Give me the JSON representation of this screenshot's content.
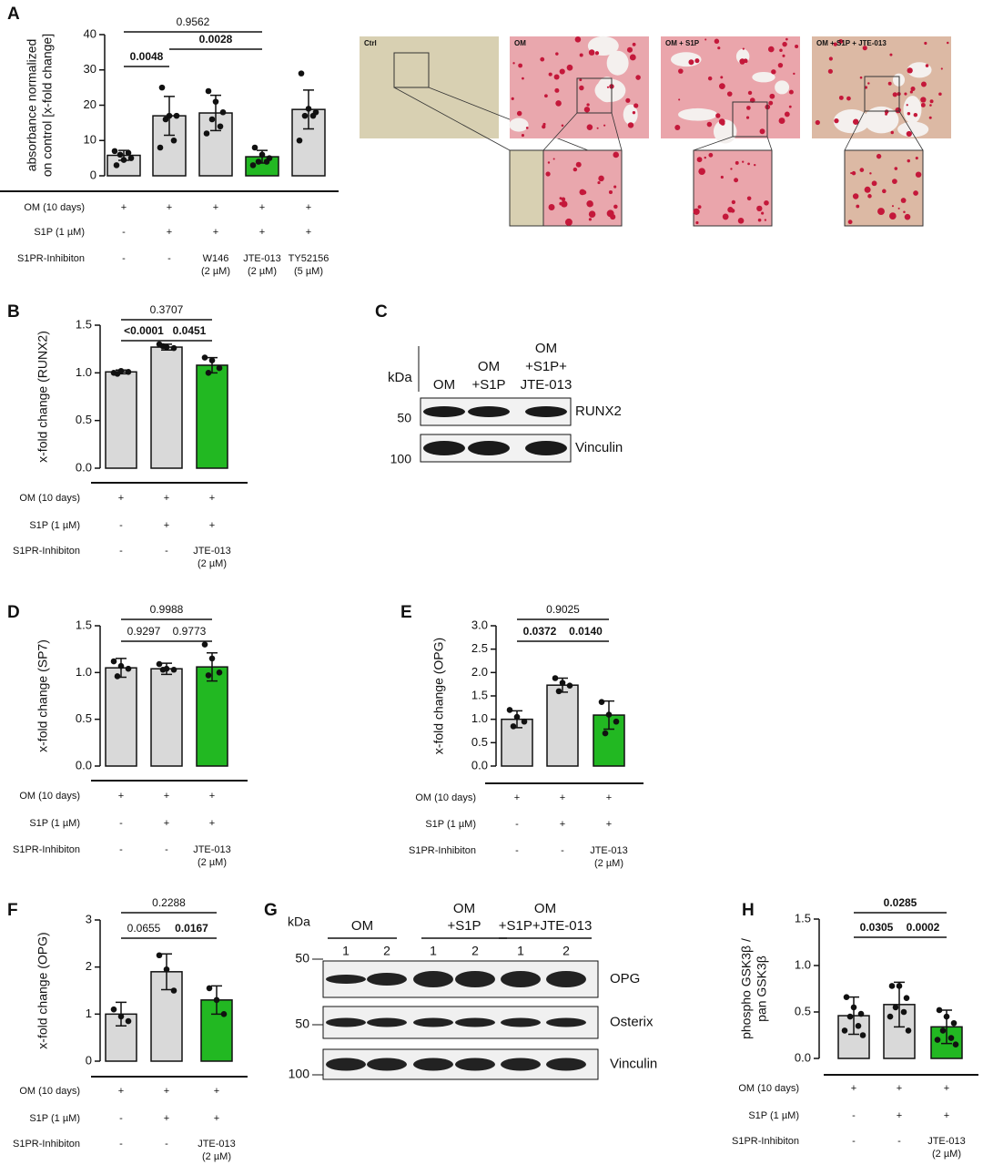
{
  "chart_data": [
    {
      "panel": "A",
      "type": "bar",
      "ylabel": [
        "absorbance normalized",
        "on control [x-fold change]"
      ],
      "ylim": [
        0,
        40
      ],
      "yticks": [
        0,
        10,
        20,
        30,
        40
      ],
      "categories": [
        null,
        null,
        null,
        null,
        null
      ],
      "values": [
        5.8,
        17.0,
        17.8,
        5.4,
        18.8
      ],
      "errors": [
        1.4,
        5.5,
        5.0,
        1.8,
        5.5
      ],
      "points": [
        [
          3,
          4.5,
          5,
          6,
          6.5,
          7
        ],
        [
          25,
          17,
          17,
          16,
          10,
          8
        ],
        [
          24,
          21,
          18,
          16,
          14,
          12
        ],
        [
          8,
          6,
          5,
          4,
          4,
          3
        ],
        [
          29,
          19,
          18,
          17,
          17,
          10
        ]
      ],
      "colors": [
        "#d9d9d9",
        "#d9d9d9",
        "#d9d9d9",
        "#22b822",
        "#d9d9d9"
      ],
      "brackets": [
        {
          "label": "0.0048",
          "from": 0,
          "to": 1,
          "bold": true
        },
        {
          "label": "0.0028",
          "from": 1,
          "to": 3,
          "bold": true
        },
        {
          "label": "0.9562",
          "from": 0,
          "to": 3,
          "bold": false
        }
      ],
      "conditions": [
        {
          "label": "OM (10 days)",
          "cells": [
            "+",
            "+",
            "+",
            "+",
            "+"
          ]
        },
        {
          "label": "S1P (1 µM)",
          "cells": [
            "-",
            "+",
            "+",
            "+",
            "+"
          ]
        },
        {
          "label": "S1PR-Inhibiton",
          "cells": [
            "-",
            "-",
            [
              "W146",
              "(2 µM)"
            ],
            [
              "JTE-013",
              "(2 µM)"
            ],
            [
              "TY52156",
              "(5 µM)"
            ]
          ]
        }
      ]
    },
    {
      "panel": "B",
      "type": "bar",
      "ylabel": [
        "x-fold change (RUNX2)"
      ],
      "ylim": [
        0,
        1.5
      ],
      "yticks": [
        {
          "value": 0,
          "label": "0.0"
        },
        {
          "value": 0.5,
          "label": "0.5"
        },
        {
          "value": 1,
          "label": "1.0"
        },
        {
          "value": 1.5,
          "label": "1.5"
        }
      ],
      "categories": [
        null,
        null,
        null
      ],
      "values": [
        1.01,
        1.27,
        1.08
      ],
      "errors": [
        0.02,
        0.03,
        0.08
      ],
      "points": [
        [
          1.0,
          1.02,
          1.01,
          0.99
        ],
        [
          1.3,
          1.27,
          1.26,
          1.28
        ],
        [
          1.16,
          1.13,
          1.05,
          1.0
        ]
      ],
      "colors": [
        "#d9d9d9",
        "#d9d9d9",
        "#22b822"
      ],
      "brackets": [
        {
          "label": "<0.0001",
          "from": 0,
          "to": 1,
          "bold": true
        },
        {
          "label": "0.0451",
          "from": 1,
          "to": 2,
          "bold": true
        },
        {
          "label": "0.3707",
          "from": 0,
          "to": 2,
          "bold": false
        }
      ],
      "conditions": [
        {
          "label": "OM (10 days)",
          "cells": [
            "+",
            "+",
            "+"
          ]
        },
        {
          "label": "S1P (1 µM)",
          "cells": [
            "-",
            "+",
            "+"
          ]
        },
        {
          "label": "S1PR-Inhibiton",
          "cells": [
            "-",
            "-",
            [
              "JTE-013",
              "(2 µM)"
            ]
          ]
        }
      ]
    },
    {
      "panel": "D",
      "type": "bar",
      "ylabel": [
        "x-fold change (SP7)"
      ],
      "ylim": [
        0,
        1.5
      ],
      "yticks": [
        {
          "value": 0,
          "label": "0.0"
        },
        {
          "value": 0.5,
          "label": "0.5"
        },
        {
          "value": 1,
          "label": "1.0"
        },
        {
          "value": 1.5,
          "label": "1.5"
        }
      ],
      "categories": [
        null,
        null,
        null
      ],
      "values": [
        1.05,
        1.04,
        1.06
      ],
      "errors": [
        0.1,
        0.06,
        0.15
      ],
      "points": [
        [
          1.12,
          1.07,
          1.04,
          0.96
        ],
        [
          1.09,
          1.04,
          1.03,
          1.03
        ],
        [
          1.3,
          1.15,
          1.0,
          0.97
        ]
      ],
      "colors": [
        "#d9d9d9",
        "#d9d9d9",
        "#22b822"
      ],
      "brackets": [
        {
          "label": "0.9297",
          "from": 0,
          "to": 1,
          "bold": false
        },
        {
          "label": "0.9773",
          "from": 1,
          "to": 2,
          "bold": false
        },
        {
          "label": "0.9988",
          "from": 0,
          "to": 2,
          "bold": false
        }
      ],
      "conditions": [
        {
          "label": "OM (10 days)",
          "cells": [
            "+",
            "+",
            "+"
          ]
        },
        {
          "label": "S1P (1 µM)",
          "cells": [
            "-",
            "+",
            "+"
          ]
        },
        {
          "label": "S1PR-Inhibiton",
          "cells": [
            "-",
            "-",
            [
              "JTE-013",
              "(2 µM)"
            ]
          ]
        }
      ]
    },
    {
      "panel": "E",
      "type": "bar",
      "ylabel": [
        "x-fold change (OPG)"
      ],
      "ylim": [
        0,
        3
      ],
      "yticks": [
        {
          "value": 0,
          "label": "0.0"
        },
        {
          "value": 0.5,
          "label": "0.5"
        },
        {
          "value": 1,
          "label": "1.0"
        },
        {
          "value": 1.5,
          "label": "1.5"
        },
        {
          "value": 2,
          "label": "2.0"
        },
        {
          "value": 2.5,
          "label": "2.5"
        },
        {
          "value": 3,
          "label": "3.0"
        }
      ],
      "categories": [
        null,
        null,
        null
      ],
      "values": [
        1.0,
        1.73,
        1.09
      ],
      "errors": [
        0.18,
        0.15,
        0.3
      ],
      "points": [
        [
          1.2,
          1.05,
          0.95,
          0.85
        ],
        [
          1.88,
          1.78,
          1.72,
          1.6
        ],
        [
          1.37,
          1.1,
          0.95,
          0.7
        ]
      ],
      "colors": [
        "#d9d9d9",
        "#d9d9d9",
        "#22b822"
      ],
      "brackets": [
        {
          "label": "0.0372",
          "from": 0,
          "to": 1,
          "bold": true
        },
        {
          "label": "0.0140",
          "from": 1,
          "to": 2,
          "bold": true
        },
        {
          "label": "0.9025",
          "from": 0,
          "to": 2,
          "bold": false
        }
      ],
      "conditions": [
        {
          "label": "OM (10 days)",
          "cells": [
            "+",
            "+",
            "+"
          ]
        },
        {
          "label": "S1P (1 µM)",
          "cells": [
            "-",
            "+",
            "+"
          ]
        },
        {
          "label": "S1PR-Inhibiton",
          "cells": [
            "-",
            "-",
            [
              "JTE-013",
              "(2 µM)"
            ]
          ]
        }
      ]
    },
    {
      "panel": "F",
      "type": "bar",
      "ylabel": [
        "x-fold change (OPG)"
      ],
      "ylim": [
        0,
        3
      ],
      "yticks": [
        0,
        1,
        2,
        3
      ],
      "categories": [
        null,
        null,
        null
      ],
      "values": [
        1.0,
        1.9,
        1.3
      ],
      "errors": [
        0.25,
        0.38,
        0.3
      ],
      "points": [
        [
          1.1,
          0.95,
          0.85
        ],
        [
          2.25,
          1.95,
          1.5
        ],
        [
          1.55,
          1.3,
          1.0
        ]
      ],
      "colors": [
        "#d9d9d9",
        "#d9d9d9",
        "#22b822"
      ],
      "brackets": [
        {
          "label": "0.0655",
          "from": 0,
          "to": 1,
          "bold": false
        },
        {
          "label": "0.0167",
          "from": 1,
          "to": 2,
          "bold": true
        },
        {
          "label": "0.2288",
          "from": 0,
          "to": 2,
          "bold": false
        }
      ],
      "conditions": [
        {
          "label": "OM (10 days)",
          "cells": [
            "+",
            "+",
            "+"
          ]
        },
        {
          "label": "S1P (1 µM)",
          "cells": [
            "-",
            "+",
            "+"
          ]
        },
        {
          "label": "S1PR-Inhibiton",
          "cells": [
            "-",
            "-",
            [
              "JTE-013",
              "(2 µM)"
            ]
          ]
        }
      ]
    },
    {
      "panel": "H",
      "type": "bar",
      "ylabel": [
        "phospho GSK3β /",
        "pan GSK3β"
      ],
      "ylim": [
        0,
        1.5
      ],
      "yticks": [
        {
          "value": 0,
          "label": "0.0"
        },
        {
          "value": 0.5,
          "label": "0.5"
        },
        {
          "value": 1,
          "label": "1.0"
        },
        {
          "value": 1.5,
          "label": "1.5"
        }
      ],
      "categories": [
        null,
        null,
        null
      ],
      "values": [
        0.46,
        0.58,
        0.34
      ],
      "errors": [
        0.2,
        0.24,
        0.18
      ],
      "points": [
        [
          0.66,
          0.55,
          0.48,
          0.45,
          0.35,
          0.3,
          0.25
        ],
        [
          0.78,
          0.78,
          0.65,
          0.55,
          0.5,
          0.45,
          0.3
        ],
        [
          0.52,
          0.45,
          0.38,
          0.3,
          0.22,
          0.2,
          0.15
        ]
      ],
      "colors": [
        "#d9d9d9",
        "#d9d9d9",
        "#22b822"
      ],
      "brackets": [
        {
          "label": "0.0305",
          "from": 0,
          "to": 1,
          "bold": true
        },
        {
          "label": "0.0002",
          "from": 1,
          "to": 2,
          "bold": true
        },
        {
          "label": "0.0285",
          "from": 0,
          "to": 2,
          "bold": true
        }
      ],
      "conditions": [
        {
          "label": "OM (10 days)",
          "cells": [
            "+",
            "+",
            "+"
          ]
        },
        {
          "label": "S1P (1 µM)",
          "cells": [
            "-",
            "+",
            "+"
          ]
        },
        {
          "label": "S1PR-Inhibiton",
          "cells": [
            "-",
            "-",
            [
              "JTE-013",
              "(2 µM)"
            ]
          ]
        }
      ]
    }
  ],
  "micrographs": {
    "labels": [
      "Ctrl",
      "OM",
      "OM + S1P",
      "OM + S1P + JTE-013"
    ]
  },
  "blot_c": {
    "panel": "C",
    "kda": "kDa",
    "lanes": [
      [
        "OM"
      ],
      [
        "OM",
        "+S1P"
      ],
      [
        "OM",
        "+S1P+",
        "JTE-013"
      ]
    ],
    "markers": [
      "50",
      "100"
    ],
    "bands": [
      "RUNX2",
      "Vinculin"
    ]
  },
  "blot_g": {
    "panel": "G",
    "kda": "kDa",
    "groups": [
      [
        "OM"
      ],
      [
        "OM",
        "+S1P"
      ],
      [
        "OM",
        "+S1P+JTE-013"
      ]
    ],
    "lanes": [
      "1",
      "2",
      "1",
      "2",
      "1",
      "2"
    ],
    "markers": [
      "50",
      "50",
      "100"
    ],
    "bands": [
      "OPG",
      "Osterix",
      "Vinculin"
    ]
  }
}
